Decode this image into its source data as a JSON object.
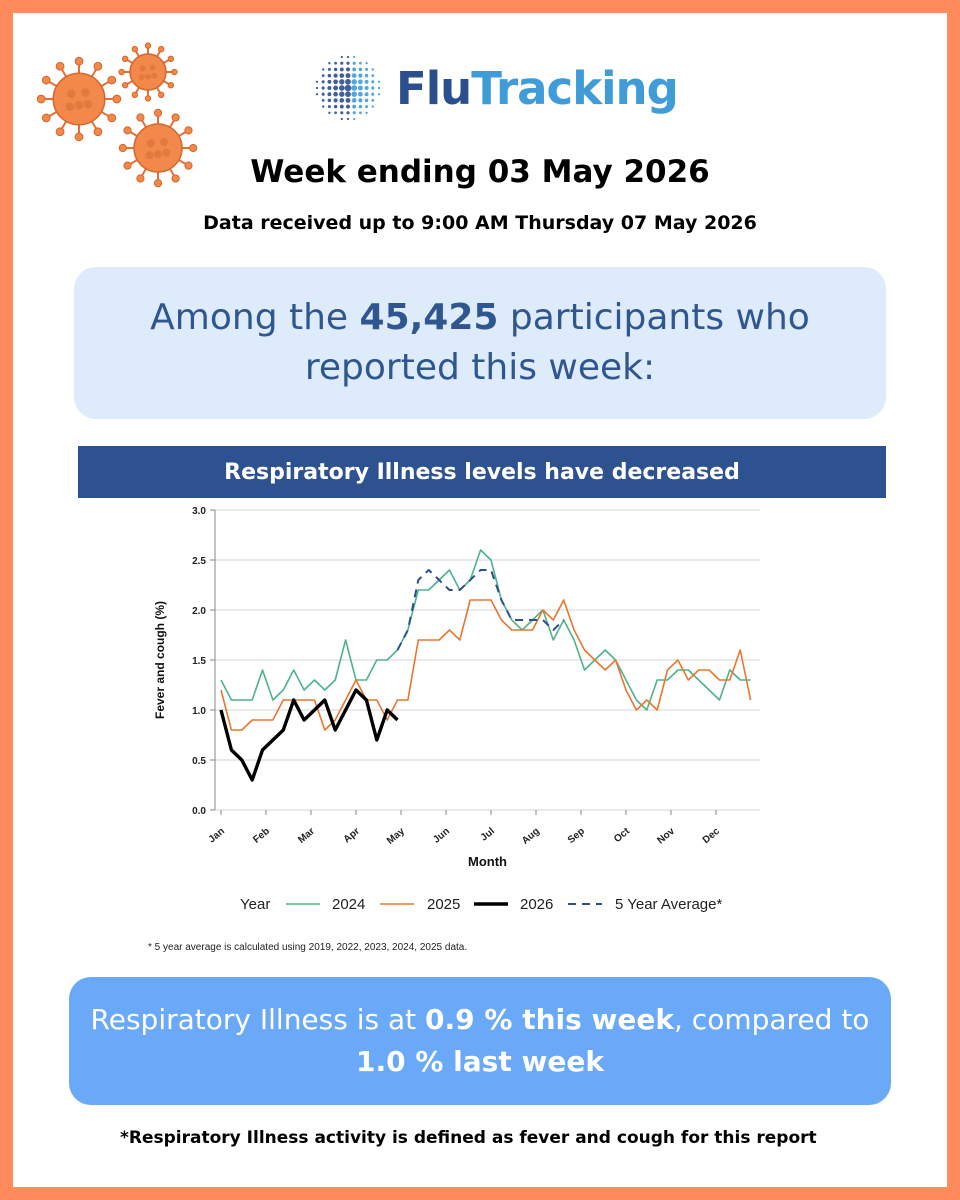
{
  "brand": {
    "name_part1": "Flu",
    "name_part2": "Tracking",
    "colors": {
      "flu": "#2c4f8f",
      "tracking": "#3f9cd8",
      "frame": "#ff8a5c"
    }
  },
  "header": {
    "week_title": "Week ending 03 May 2026",
    "data_received": "Data received up to 9:00 AM Thursday 07 May 2026"
  },
  "participants": {
    "prefix": "Among the ",
    "count": "45,425",
    "suffix": " participants who reported this week:"
  },
  "banner": {
    "text": "Respiratory Illness levels have decreased"
  },
  "chart_data": {
    "type": "line",
    "xlabel": "Month",
    "ylabel": "Fever and cough (%)",
    "ylim": [
      0,
      3
    ],
    "yticks": [
      "0.0",
      "0.5",
      "1.0",
      "1.5",
      "2.0",
      "2.5",
      "3.0"
    ],
    "months": [
      "Jan",
      "Feb",
      "Mar",
      "Apr",
      "May",
      "Jun",
      "Jul",
      "Aug",
      "Sep",
      "Oct",
      "Nov",
      "Dec"
    ],
    "grid": "horizontal",
    "legend_title": "Year",
    "legend_position": "bottom",
    "footnote": "* 5 year average is calculated using 2019, 2022, 2023, 2024, 2025 data.",
    "series": [
      {
        "name": "2024",
        "color": "#4fb38a",
        "style": "solid",
        "width": 1.6,
        "x": [
          1,
          2,
          3,
          4,
          5,
          6,
          7,
          8,
          9,
          10,
          11,
          12,
          13,
          14,
          15,
          16,
          17,
          18,
          19,
          20,
          21,
          22,
          23,
          24,
          25,
          26,
          27,
          28,
          29,
          30,
          31,
          32,
          33,
          34,
          35,
          36,
          37,
          38,
          39,
          40,
          41,
          42,
          43,
          44,
          45,
          46,
          47,
          48,
          49,
          50,
          51,
          52
        ],
        "values": [
          1.3,
          1.1,
          1.1,
          1.1,
          1.4,
          1.1,
          1.2,
          1.4,
          1.2,
          1.3,
          1.2,
          1.3,
          1.7,
          1.3,
          1.3,
          1.5,
          1.5,
          1.6,
          1.8,
          2.2,
          2.2,
          2.3,
          2.4,
          2.2,
          2.3,
          2.6,
          2.5,
          2.1,
          1.9,
          1.8,
          1.9,
          2.0,
          1.7,
          1.9,
          1.7,
          1.4,
          1.5,
          1.6,
          1.5,
          1.3,
          1.1,
          1.0,
          1.3,
          1.3,
          1.4,
          1.4,
          1.3,
          1.2,
          1.1,
          1.4,
          1.3,
          1.3
        ]
      },
      {
        "name": "2025",
        "color": "#e8772e",
        "style": "solid",
        "width": 1.6,
        "x": [
          1,
          2,
          3,
          4,
          5,
          6,
          7,
          8,
          9,
          10,
          11,
          12,
          13,
          14,
          15,
          16,
          17,
          18,
          19,
          20,
          21,
          22,
          23,
          24,
          25,
          26,
          27,
          28,
          29,
          30,
          31,
          32,
          33,
          34,
          35,
          36,
          37,
          38,
          39,
          40,
          41,
          42,
          43,
          44,
          45,
          46,
          47,
          48,
          49,
          50,
          51,
          52
        ],
        "values": [
          1.2,
          0.8,
          0.8,
          0.9,
          0.9,
          0.9,
          1.1,
          1.1,
          1.1,
          1.1,
          0.8,
          0.9,
          1.1,
          1.3,
          1.1,
          1.1,
          0.9,
          1.1,
          1.1,
          1.7,
          1.7,
          1.7,
          1.8,
          1.7,
          2.1,
          2.1,
          2.1,
          1.9,
          1.8,
          1.8,
          1.8,
          2.0,
          1.9,
          2.1,
          1.8,
          1.6,
          1.5,
          1.4,
          1.5,
          1.2,
          1.0,
          1.1,
          1.0,
          1.4,
          1.5,
          1.3,
          1.4,
          1.4,
          1.3,
          1.3,
          1.6,
          1.1
        ]
      },
      {
        "name": "2026",
        "color": "#000000",
        "style": "solid",
        "width": 3.4,
        "x": [
          1,
          2,
          3,
          4,
          5,
          6,
          7,
          8,
          9,
          10,
          11,
          12,
          13,
          14,
          15,
          16,
          17,
          18
        ],
        "values": [
          1.0,
          0.6,
          0.5,
          0.3,
          0.6,
          0.7,
          0.8,
          1.1,
          0.9,
          1.0,
          1.1,
          0.8,
          1.0,
          1.2,
          1.1,
          0.7,
          1.0,
          0.9
        ]
      },
      {
        "name": "5 Year Average*",
        "color": "#2c4f8f",
        "style": "dashed",
        "width": 2,
        "x": [
          18,
          19,
          20,
          21,
          22,
          23,
          24,
          25,
          26,
          27,
          28,
          29,
          30,
          31,
          32,
          33,
          34
        ],
        "values": [
          1.6,
          1.8,
          2.3,
          2.4,
          2.3,
          2.2,
          2.2,
          2.3,
          2.4,
          2.4,
          2.1,
          1.9,
          1.9,
          1.9,
          1.9,
          1.8,
          1.9
        ]
      }
    ]
  },
  "result": {
    "prefix": "Respiratory Illness is at ",
    "this_week": "0.9 % this week",
    "middle": ", compared to ",
    "last_week_value": "1.0 %",
    "last_week_suffix": " last week"
  },
  "footnote": "*Respiratory Illness activity is defined as fever and cough for this report"
}
